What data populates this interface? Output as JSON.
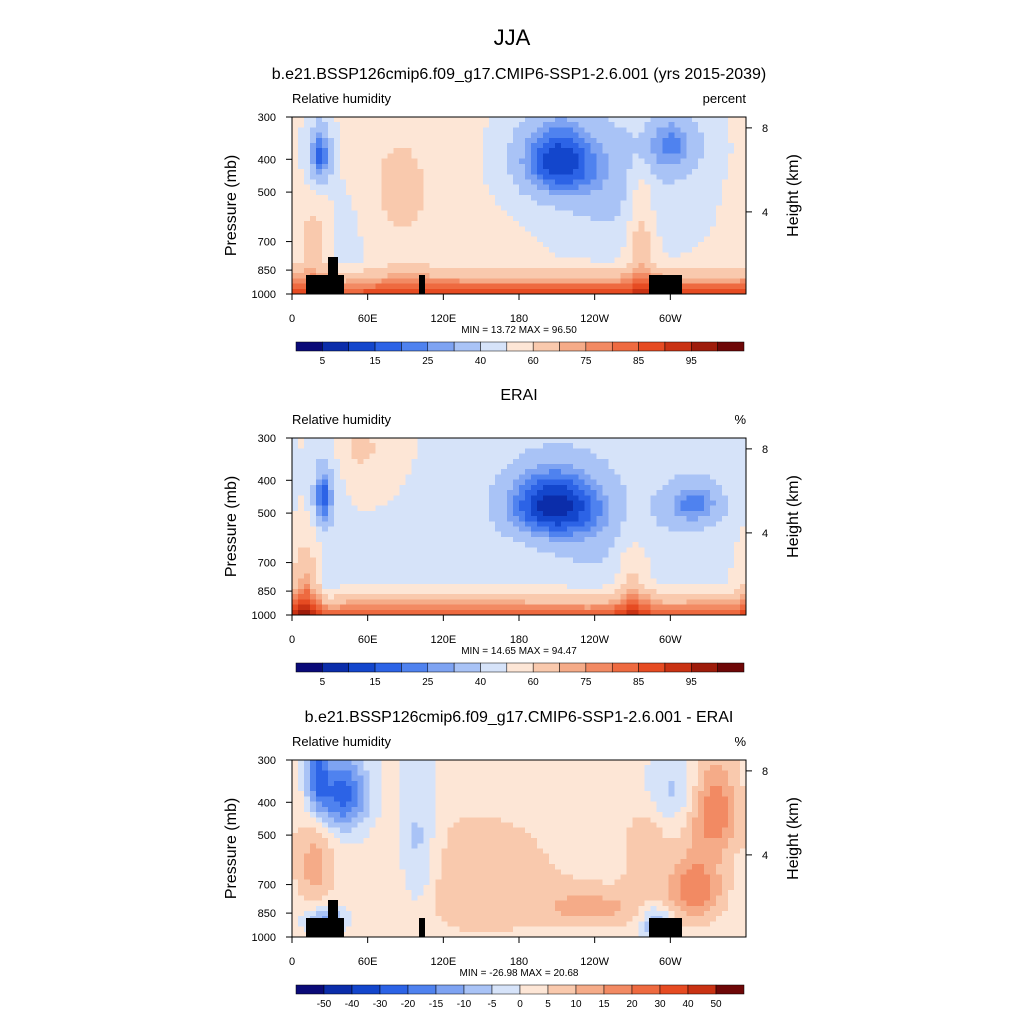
{
  "figure": {
    "title": "JJA"
  },
  "chart_data": [
    {
      "type": "heatmap",
      "title": "b.e21.BSSP126cmip6.f09_g17.CMIP6-SSP1-2.6.001 (yrs 2015-2039)",
      "left_label": "Relative humidity",
      "right_label": "percent",
      "ylabel": "Pressure (mb)",
      "y2label": "Height (km)",
      "x_ticks": [
        "0",
        "60E",
        "120E",
        "180",
        "120W",
        "60W"
      ],
      "y_ticks": [
        "300",
        "400",
        "500",
        "700",
        "850",
        "1000"
      ],
      "y2_ticks": [
        "8",
        "4"
      ],
      "stats": "MIN =  13.72  MAX =  96.50",
      "colorbar_labels": [
        "5",
        "15",
        "25",
        "40",
        "60",
        "75",
        "85",
        "95"
      ],
      "colors": [
        "#0a0a78",
        "#0b2daa",
        "#1346cc",
        "#2c63e6",
        "#4f82ef",
        "#7ea3f2",
        "#a9c3f6",
        "#d6e3f9",
        "#fde6d6",
        "#f9c9ad",
        "#f5ab88",
        "#f28a63",
        "#ee6a40",
        "#e64b22",
        "#c93213",
        "#9e1c0b",
        "#6e0707"
      ],
      "data_min": 13.72,
      "data_max": 96.5,
      "field": "model_rh"
    },
    {
      "type": "heatmap",
      "title": "ERAI",
      "left_label": "Relative humidity",
      "right_label": "%",
      "ylabel": "Pressure (mb)",
      "y2label": "Height (km)",
      "x_ticks": [
        "0",
        "60E",
        "120E",
        "180",
        "120W",
        "60W"
      ],
      "y_ticks": [
        "300",
        "400",
        "500",
        "700",
        "850",
        "1000"
      ],
      "y2_ticks": [
        "8",
        "4"
      ],
      "stats": "MIN =  14.65  MAX =  94.47",
      "colorbar_labels": [
        "5",
        "15",
        "25",
        "40",
        "60",
        "75",
        "85",
        "95"
      ],
      "colors": [
        "#0a0a78",
        "#0b2daa",
        "#1346cc",
        "#2c63e6",
        "#4f82ef",
        "#7ea3f2",
        "#a9c3f6",
        "#d6e3f9",
        "#fde6d6",
        "#f9c9ad",
        "#f5ab88",
        "#f28a63",
        "#ee6a40",
        "#e64b22",
        "#c93213",
        "#9e1c0b",
        "#6e0707"
      ],
      "data_min": 14.65,
      "data_max": 94.47,
      "field": "obs_rh"
    },
    {
      "type": "heatmap",
      "title": "b.e21.BSSP126cmip6.f09_g17.CMIP6-SSP1-2.6.001 - ERAI",
      "left_label": "Relative humidity",
      "right_label": "%",
      "ylabel": "Pressure (mb)",
      "y2label": "Height (km)",
      "x_ticks": [
        "0",
        "60E",
        "120E",
        "180",
        "120W",
        "60W"
      ],
      "y_ticks": [
        "300",
        "400",
        "500",
        "700",
        "850",
        "1000"
      ],
      "y2_ticks": [
        "8",
        "4"
      ],
      "stats": "MIN = -26.98  MAX =  20.68",
      "colorbar_labels": [
        "-50",
        "-40",
        "-30",
        "-20",
        "-15",
        "-10",
        "-5",
        "0",
        "5",
        "10",
        "15",
        "20",
        "30",
        "40",
        "50"
      ],
      "colors": [
        "#0a0a78",
        "#0b2daa",
        "#1346cc",
        "#2c63e6",
        "#4f82ef",
        "#7ea3f2",
        "#a9c3f6",
        "#d6e3f9",
        "#fde6d6",
        "#f9c9ad",
        "#f5ab88",
        "#f28a63",
        "#ee6a40",
        "#e64b22",
        "#c93213",
        "#6e0707"
      ],
      "data_min": -26.98,
      "data_max": 20.68,
      "field": "diff_rh"
    }
  ]
}
